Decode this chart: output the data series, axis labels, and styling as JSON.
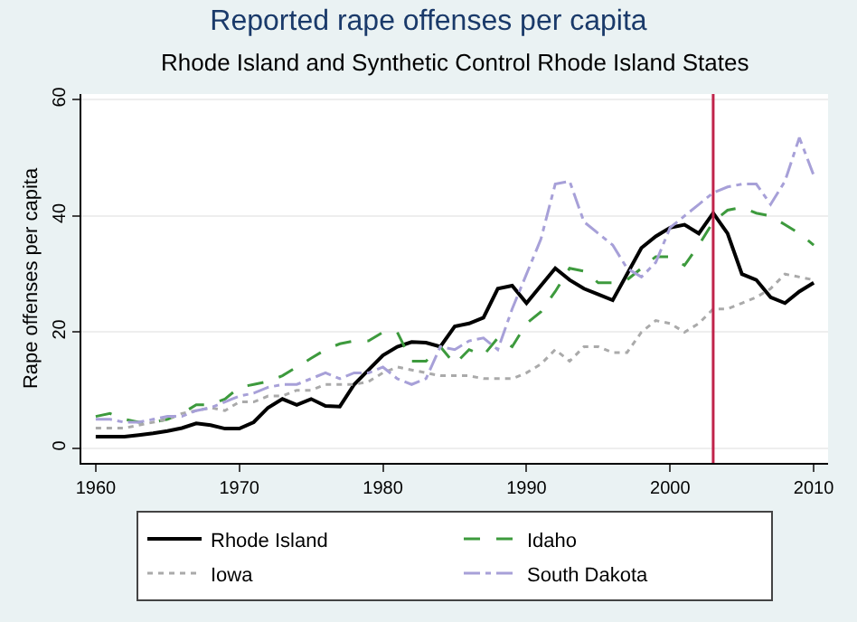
{
  "chart_data": {
    "type": "line",
    "title": "Reported rape offenses per capita",
    "subtitle": "Rhode Island and Synthetic Control Rhode Island States",
    "ylabel": "Rape offenses per capita",
    "x": [
      1960,
      1961,
      1962,
      1963,
      1964,
      1965,
      1966,
      1967,
      1968,
      1969,
      1970,
      1971,
      1972,
      1973,
      1974,
      1975,
      1976,
      1977,
      1978,
      1979,
      1980,
      1981,
      1982,
      1983,
      1984,
      1985,
      1986,
      1987,
      1988,
      1989,
      1990,
      1991,
      1992,
      1993,
      1994,
      1995,
      1996,
      1997,
      1998,
      1999,
      2000,
      2001,
      2002,
      2003,
      2004,
      2005,
      2006,
      2007,
      2008,
      2009,
      2010
    ],
    "series": [
      {
        "name": "Rhode Island",
        "color": "#000000",
        "line_style": "solid",
        "values": [
          2,
          2,
          2,
          2.3,
          2.6,
          3,
          3.5,
          4.3,
          4,
          3.4,
          3.4,
          4.5,
          7,
          8.5,
          7.5,
          8.5,
          7.3,
          7.2,
          11,
          13.5,
          16,
          17.5,
          18.3,
          18.2,
          17.5,
          21,
          21.5,
          22.5,
          27.5,
          28,
          25,
          28,
          31,
          29,
          27.5,
          26.5,
          25.5,
          30,
          34.5,
          36.5,
          38,
          38.5,
          37,
          40.5,
          37,
          30,
          29,
          26,
          25,
          27,
          28.5
        ]
      },
      {
        "name": "Idaho",
        "color": "#3d9a3d",
        "line_style": "dashed",
        "values": [
          5.5,
          6,
          5,
          4.5,
          4.5,
          5,
          6,
          7.5,
          7.5,
          8.5,
          10.5,
          11,
          11.5,
          12.5,
          14,
          15.5,
          17,
          18,
          18.5,
          18.5,
          20,
          20,
          15,
          15,
          17.5,
          14.5,
          17,
          16,
          19,
          17.5,
          21.5,
          23.5,
          27,
          31,
          30.5,
          28.5,
          28.5,
          29,
          31,
          33,
          33,
          31.5,
          35,
          39,
          41,
          41.5,
          40.5,
          40,
          38.5,
          37,
          35
        ]
      },
      {
        "name": "Iowa",
        "color": "#aaaaaa",
        "line_style": "dotted",
        "values": [
          3.5,
          3.5,
          3.5,
          4,
          4.5,
          5,
          6,
          6.5,
          7,
          6.5,
          8,
          8,
          9,
          9,
          10,
          10,
          11,
          11,
          11,
          11.5,
          13,
          14,
          13.5,
          13,
          12.5,
          12.5,
          12.5,
          12,
          12,
          12,
          13,
          14.5,
          17,
          15,
          17.5,
          17.5,
          16.5,
          16.5,
          20,
          22,
          21.5,
          20,
          21.5,
          24,
          24,
          25,
          26,
          27.5,
          30,
          29.5,
          29
        ]
      },
      {
        "name": "South Dakota",
        "color": "#a7a0d8",
        "line_style": "dashdot",
        "values": [
          5,
          5,
          4.5,
          4.5,
          5,
          5.5,
          5.5,
          6.5,
          7,
          8,
          9,
          9.5,
          10.5,
          11,
          11,
          12,
          13,
          12,
          13,
          13,
          14,
          12,
          11,
          12,
          17.5,
          17,
          18.5,
          19,
          17,
          24,
          30,
          36,
          45.5,
          46,
          39,
          37,
          35,
          31,
          29.5,
          32,
          38,
          40,
          42,
          44,
          45,
          45.5,
          45.5,
          42,
          46,
          53.5,
          47
        ]
      }
    ],
    "xlim": [
      1959,
      2011
    ],
    "xticks": [
      1960,
      1970,
      1980,
      1990,
      2000,
      2010
    ],
    "ylim": [
      -2.5,
      61
    ],
    "yticks": [
      0,
      20,
      40,
      60
    ],
    "ref_lines": [
      {
        "axis": "x",
        "value": 2003,
        "color": "#c0234a"
      }
    ],
    "grid": "y",
    "legend": "bottom",
    "marker": "none"
  }
}
